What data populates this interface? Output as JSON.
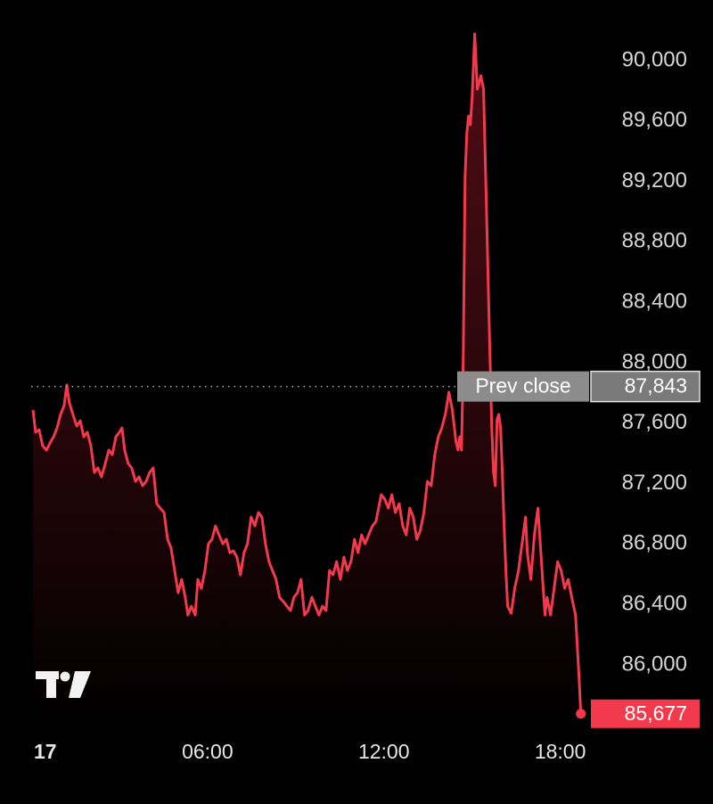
{
  "chart_data": {
    "type": "line",
    "color": "#f23a4c",
    "x": [
      0.06,
      0.15,
      0.27,
      0.39,
      0.52,
      0.64,
      0.76,
      0.88,
      1.0,
      1.12,
      1.21,
      1.3,
      1.42,
      1.55,
      1.67,
      1.79,
      1.91,
      2.03,
      2.15,
      2.27,
      2.39,
      2.52,
      2.64,
      2.76,
      2.88,
      3.0,
      3.09,
      3.18,
      3.3,
      3.42,
      3.55,
      3.67,
      3.79,
      3.91,
      4.03,
      4.15,
      4.27,
      4.39,
      4.52,
      4.64,
      4.76,
      4.88,
      5.0,
      5.12,
      5.24,
      5.33,
      5.45,
      5.58,
      5.67,
      5.79,
      5.91,
      6.03,
      6.15,
      6.27,
      6.39,
      6.52,
      6.64,
      6.76,
      6.88,
      7.0,
      7.12,
      7.24,
      7.36,
      7.48,
      7.61,
      7.73,
      7.85,
      7.97,
      8.09,
      8.21,
      8.33,
      8.45,
      8.58,
      8.7,
      8.82,
      8.94,
      9.06,
      9.18,
      9.3,
      9.42,
      9.55,
      9.67,
      9.79,
      9.91,
      10.03,
      10.15,
      10.27,
      10.39,
      10.52,
      10.64,
      10.76,
      10.88,
      11.0,
      11.12,
      11.24,
      11.36,
      11.48,
      11.61,
      11.73,
      11.91,
      12.03,
      12.15,
      12.27,
      12.39,
      12.52,
      12.64,
      12.76,
      12.88,
      13.0,
      13.12,
      13.24,
      13.36,
      13.48,
      13.61,
      13.73,
      13.85,
      13.97,
      14.09,
      14.21,
      14.33,
      14.45,
      14.52,
      14.58,
      14.64,
      14.7,
      14.76,
      14.82,
      14.88,
      14.94,
      15.0,
      15.09,
      15.18,
      15.3,
      15.39,
      15.48,
      15.55,
      15.61,
      15.67,
      15.73,
      15.79,
      15.85,
      15.91,
      15.97,
      16.03,
      16.09,
      16.15,
      16.21,
      16.33,
      16.45,
      16.58,
      16.7,
      16.82,
      16.88,
      17.0,
      17.12,
      17.24,
      17.36,
      17.48,
      17.55,
      17.67,
      17.79,
      17.91,
      18.03,
      18.15,
      18.27,
      18.39,
      18.52,
      18.64,
      18.7
    ],
    "values": [
      87687,
      87540,
      87557,
      87451,
      87422,
      87469,
      87510,
      87569,
      87658,
      87717,
      87853,
      87734,
      87658,
      87581,
      87616,
      87510,
      87540,
      87451,
      87274,
      87304,
      87245,
      87333,
      87422,
      87392,
      87510,
      87540,
      87569,
      87422,
      87333,
      87304,
      87215,
      87245,
      87186,
      87215,
      87274,
      87304,
      87068,
      87038,
      87009,
      86832,
      86773,
      86625,
      86478,
      86566,
      86448,
      86330,
      86389,
      86330,
      86566,
      86507,
      86625,
      86802,
      86832,
      86920,
      86861,
      86802,
      86832,
      86743,
      86755,
      86714,
      86596,
      86743,
      86802,
      86979,
      86920,
      87009,
      86979,
      86802,
      86684,
      86625,
      86566,
      86448,
      86419,
      86389,
      86360,
      86448,
      86478,
      86566,
      86330,
      86360,
      86448,
      86389,
      86330,
      86389,
      86360,
      86625,
      86596,
      86684,
      86566,
      86714,
      86625,
      86684,
      86832,
      86743,
      86861,
      86802,
      86861,
      86920,
      86950,
      87127,
      87097,
      87038,
      87127,
      87009,
      87068,
      86920,
      86861,
      87038,
      86979,
      86832,
      86891,
      87009,
      87215,
      87186,
      87392,
      87510,
      87569,
      87658,
      87805,
      87687,
      87481,
      87422,
      87510,
      87422,
      88041,
      89221,
      89516,
      89634,
      89575,
      89752,
      90177,
      89811,
      89900,
      89811,
      89103,
      88513,
      88041,
      87569,
      87274,
      87186,
      87628,
      87658,
      87569,
      87274,
      86920,
      86625,
      86389,
      86342,
      86507,
      86625,
      86802,
      86979,
      86743,
      86566,
      86861,
      87038,
      86684,
      86330,
      86448,
      86330,
      86507,
      86684,
      86625,
      86507,
      86566,
      86448,
      86330,
      85918,
      85677
    ],
    "xlim": [
      0,
      18.8
    ],
    "xticks": [
      {
        "value": 0,
        "label": "17"
      },
      {
        "value": 6,
        "label": "06:00"
      },
      {
        "value": 12,
        "label": "12:00"
      },
      {
        "value": 18,
        "label": "18:00"
      }
    ],
    "ylim": [
      85600,
      90250
    ],
    "yticks": [
      {
        "value": 86000,
        "label": "86,000"
      },
      {
        "value": 86400,
        "label": "86,400"
      },
      {
        "value": 86800,
        "label": "86,800"
      },
      {
        "value": 87200,
        "label": "87,200"
      },
      {
        "value": 87600,
        "label": "87,600"
      },
      {
        "value": 88000,
        "label": "88,000"
      },
      {
        "value": 88400,
        "label": "88,400"
      },
      {
        "value": 88800,
        "label": "88,800"
      },
      {
        "value": 89200,
        "label": "89,200"
      },
      {
        "value": 89600,
        "label": "89,600"
      },
      {
        "value": 90000,
        "label": "90,000"
      }
    ],
    "prev_close": {
      "text": "Prev close",
      "value": 87843,
      "label": "87,843"
    },
    "last_price": {
      "value": 85677,
      "label": "85,677"
    }
  }
}
